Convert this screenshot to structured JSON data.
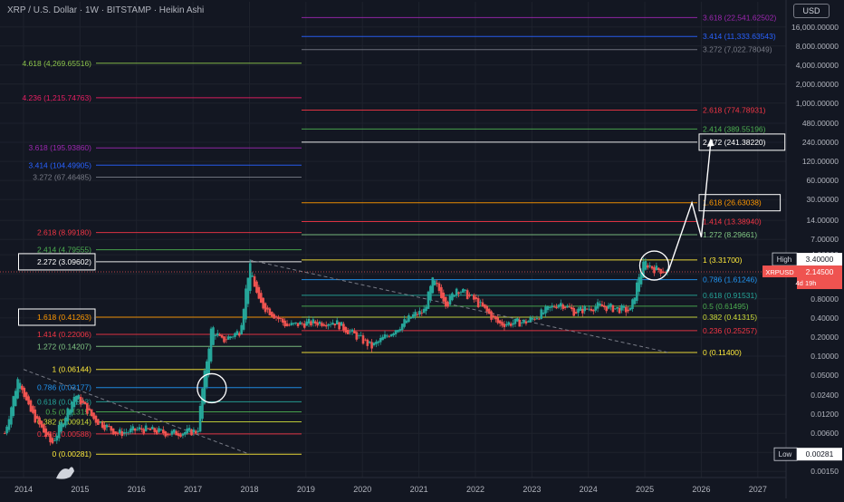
{
  "header": {
    "title": "XRP / U.S. Dollar · 1W · BITSTAMP · Heikin Ashi",
    "currency": "USD"
  },
  "colors": {
    "bg": "#131722",
    "up": "#26a69a",
    "down": "#ef5350",
    "grid": "#1e222d",
    "axis_text": "#b2b5be"
  },
  "chart_data": {
    "type": "candlestick",
    "y_scale": "log",
    "ylim": [
      0.0012,
      40000
    ],
    "xlim": [
      "2013-08",
      "2027-07"
    ],
    "x_ticks": [
      "2014",
      "2015",
      "2016",
      "2017",
      "2018",
      "2019",
      "2020",
      "2021",
      "2022",
      "2023",
      "2024",
      "2025",
      "2026",
      "2027"
    ],
    "y_ticks": [
      "16,000.00000",
      "8,000.00000",
      "4,000.00000",
      "2,000.00000",
      "1,000.00000",
      "480.00000",
      "240.00000",
      "120.00000",
      "60.00000",
      "30.00000",
      "14.00000",
      "7.00000",
      "4.00000",
      "2.00000",
      "0.80000",
      "0.40000",
      "0.20000",
      "0.10000",
      "0.05000",
      "0.02400",
      "0.01200",
      "0.00600",
      "0.00300",
      "0.00150"
    ],
    "price_tag": {
      "symbol": "XRPUSD",
      "value": "2.14500",
      "countdown": "4d 19h"
    },
    "high_tag": {
      "label": "High",
      "value": "3.40000"
    },
    "low_tag": {
      "label": "Low",
      "value": "0.00281"
    },
    "fib_2014_2018": [
      {
        "ratio": "4.618",
        "price": "4,269.65516",
        "value": 4269.65516,
        "color": "#8bc34a"
      },
      {
        "ratio": "4.236",
        "price": "1,215.74763",
        "value": 1215.74763,
        "color": "#e91e63"
      },
      {
        "ratio": "3.618",
        "price": "195.93860",
        "value": 195.9386,
        "color": "#9c27b0"
      },
      {
        "ratio": "3.414",
        "price": "104.49905",
        "value": 104.49905,
        "color": "#2962ff"
      },
      {
        "ratio": "3.272",
        "price": "67.46485",
        "value": 67.46485,
        "color": "#787b86"
      },
      {
        "ratio": "2.618",
        "price": "8.99180",
        "value": 8.9918,
        "color": "#f23645"
      },
      {
        "ratio": "2.414",
        "price": "4.79555",
        "value": 4.79555,
        "color": "#4caf50"
      },
      {
        "ratio": "2.272",
        "price": "3.09602",
        "value": 3.09602,
        "color": "#ffffff",
        "boxed": true
      },
      {
        "ratio": "1.618",
        "price": "0.41263",
        "value": 0.41263,
        "color": "#ff9800",
        "boxed": true
      },
      {
        "ratio": "1.414",
        "price": "0.22006",
        "value": 0.22006,
        "color": "#f23645"
      },
      {
        "ratio": "1.272",
        "price": "0.14207",
        "value": 0.14207,
        "color": "#81c784"
      },
      {
        "ratio": "1",
        "price": "0.06144",
        "value": 0.06144,
        "color": "#ffeb3b"
      },
      {
        "ratio": "0.786",
        "price": "0.03177",
        "value": 0.03177,
        "color": "#2196f3"
      },
      {
        "ratio": "0.618",
        "price": "0.01893",
        "value": 0.01893,
        "color": "#26a69a"
      },
      {
        "ratio": "0.5",
        "price": "0.01315",
        "value": 0.01315,
        "color": "#4caf50"
      },
      {
        "ratio": "0.382",
        "price": "0.00914",
        "value": 0.00914,
        "color": "#cddc39"
      },
      {
        "ratio": "0.236",
        "price": "0.00588",
        "value": 0.00588,
        "color": "#f23645"
      },
      {
        "ratio": "0",
        "price": "0.00281",
        "value": 0.00281,
        "color": "#ffeb3b"
      }
    ],
    "fib_2018_2025": [
      {
        "ratio": "3.618",
        "price": "22,541.62502",
        "value": 22541.62502,
        "color": "#9c27b0"
      },
      {
        "ratio": "3.414",
        "price": "11,333.63543",
        "value": 11333.63543,
        "color": "#2962ff"
      },
      {
        "ratio": "3.272",
        "price": "7,022.78049",
        "value": 7022.78049,
        "color": "#787b86"
      },
      {
        "ratio": "2.618",
        "price": "774.78931",
        "value": 774.78931,
        "color": "#f23645"
      },
      {
        "ratio": "2.414",
        "price": "389.55196",
        "value": 389.55196,
        "color": "#4caf50"
      },
      {
        "ratio": "2.272",
        "price": "241.38220",
        "value": 241.3822,
        "color": "#ffffff",
        "boxed": true
      },
      {
        "ratio": "1.618",
        "price": "26.63038",
        "value": 26.63038,
        "color": "#ff9800",
        "boxed": true
      },
      {
        "ratio": "1.414",
        "price": "13.38940",
        "value": 13.3894,
        "color": "#f23645"
      },
      {
        "ratio": "1.272",
        "price": "8.29661",
        "value": 8.29661,
        "color": "#81c784"
      },
      {
        "ratio": "1",
        "price": "3.31700",
        "value": 3.317,
        "color": "#ffeb3b"
      },
      {
        "ratio": "0.786",
        "price": "1.61246",
        "value": 1.61246,
        "color": "#2196f3"
      },
      {
        "ratio": "0.618",
        "price": "0.91531",
        "value": 0.91531,
        "color": "#26a69a"
      },
      {
        "ratio": "0.5",
        "price": "0.61495",
        "value": 0.61495,
        "color": "#4caf50"
      },
      {
        "ratio": "0.382",
        "price": "0.41315",
        "value": 0.41315,
        "color": "#cddc39"
      },
      {
        "ratio": "0.236",
        "price": "0.25257",
        "value": 0.25257,
        "color": "#f23645"
      },
      {
        "ratio": "0",
        "price": "0.11400",
        "value": 0.114,
        "color": "#ffeb3b"
      }
    ],
    "price_path": [
      [
        "2013-09",
        0.006
      ],
      [
        "2013-12",
        0.05
      ],
      [
        "2014-02",
        0.015
      ],
      [
        "2014-07",
        0.004
      ],
      [
        "2014-12",
        0.025
      ],
      [
        "2015-04",
        0.01
      ],
      [
        "2015-09",
        0.006
      ],
      [
        "2016-02",
        0.007
      ],
      [
        "2016-08",
        0.006
      ],
      [
        "2017-02",
        0.0065
      ],
      [
        "2017-03",
        0.03
      ],
      [
        "2017-05",
        0.3
      ],
      [
        "2017-07",
        0.17
      ],
      [
        "2017-11",
        0.25
      ],
      [
        "2018-01",
        2.8
      ],
      [
        "2018-03",
        0.7
      ],
      [
        "2018-09",
        0.3
      ],
      [
        "2019-01",
        0.33
      ],
      [
        "2019-07",
        0.35
      ],
      [
        "2019-12",
        0.2
      ],
      [
        "2020-03",
        0.14
      ],
      [
        "2020-12",
        0.45
      ],
      [
        "2021-02",
        0.5
      ],
      [
        "2021-04",
        1.6
      ],
      [
        "2021-07",
        0.65
      ],
      [
        "2021-09",
        1.2
      ],
      [
        "2022-01",
        0.75
      ],
      [
        "2022-06",
        0.32
      ],
      [
        "2022-12",
        0.35
      ],
      [
        "2023-07",
        0.7
      ],
      [
        "2023-10",
        0.5
      ],
      [
        "2024-03",
        0.62
      ],
      [
        "2024-10",
        0.52
      ],
      [
        "2024-12",
        2.2
      ],
      [
        "2025-01",
        3.0
      ],
      [
        "2025-03",
        2.4
      ],
      [
        "2025-06",
        2.15
      ]
    ],
    "trendlines": [
      {
        "from": [
          "2014-01",
          0.06144
        ],
        "to": [
          "2018-01",
          0.00281
        ]
      },
      {
        "from": [
          "2018-01",
          3.317
        ],
        "to": [
          "2025-06",
          0.114
        ]
      }
    ],
    "projection_path": [
      [
        "2025-06",
        2.2
      ],
      [
        "2025-11",
        26.63038
      ],
      [
        "2026-01",
        7.6
      ],
      [
        "2026-03",
        241.3822
      ]
    ],
    "highlight_circles": [
      [
        "2017-05",
        0.031
      ],
      [
        "2025-03",
        2.7
      ]
    ]
  }
}
